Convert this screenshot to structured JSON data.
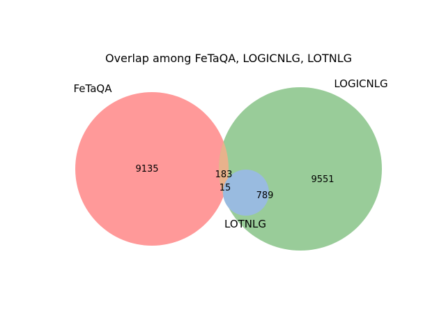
{
  "title": "Overlap among FeTaQA, LOGICNLG, LOTNLG",
  "sets": [
    {
      "name": "FeTaQA",
      "color": "#ff9999"
    },
    {
      "name": "LOGICNLG",
      "color": "#99cc99"
    },
    {
      "name": "LOTNLG",
      "color": "#99bbe0"
    }
  ],
  "overlap_colors": {
    "fetaqa_logicnlg": "#e8b28c",
    "logicnlg_lotnlg": "#99bbe0"
  },
  "regions": {
    "fetaqa_only": "9135",
    "logicnlg_only": "9551",
    "fetaqa_logicnlg": "183",
    "fetaqa_logicnlg_lotnlg": "15",
    "logicnlg_lotnlg": "789"
  }
}
